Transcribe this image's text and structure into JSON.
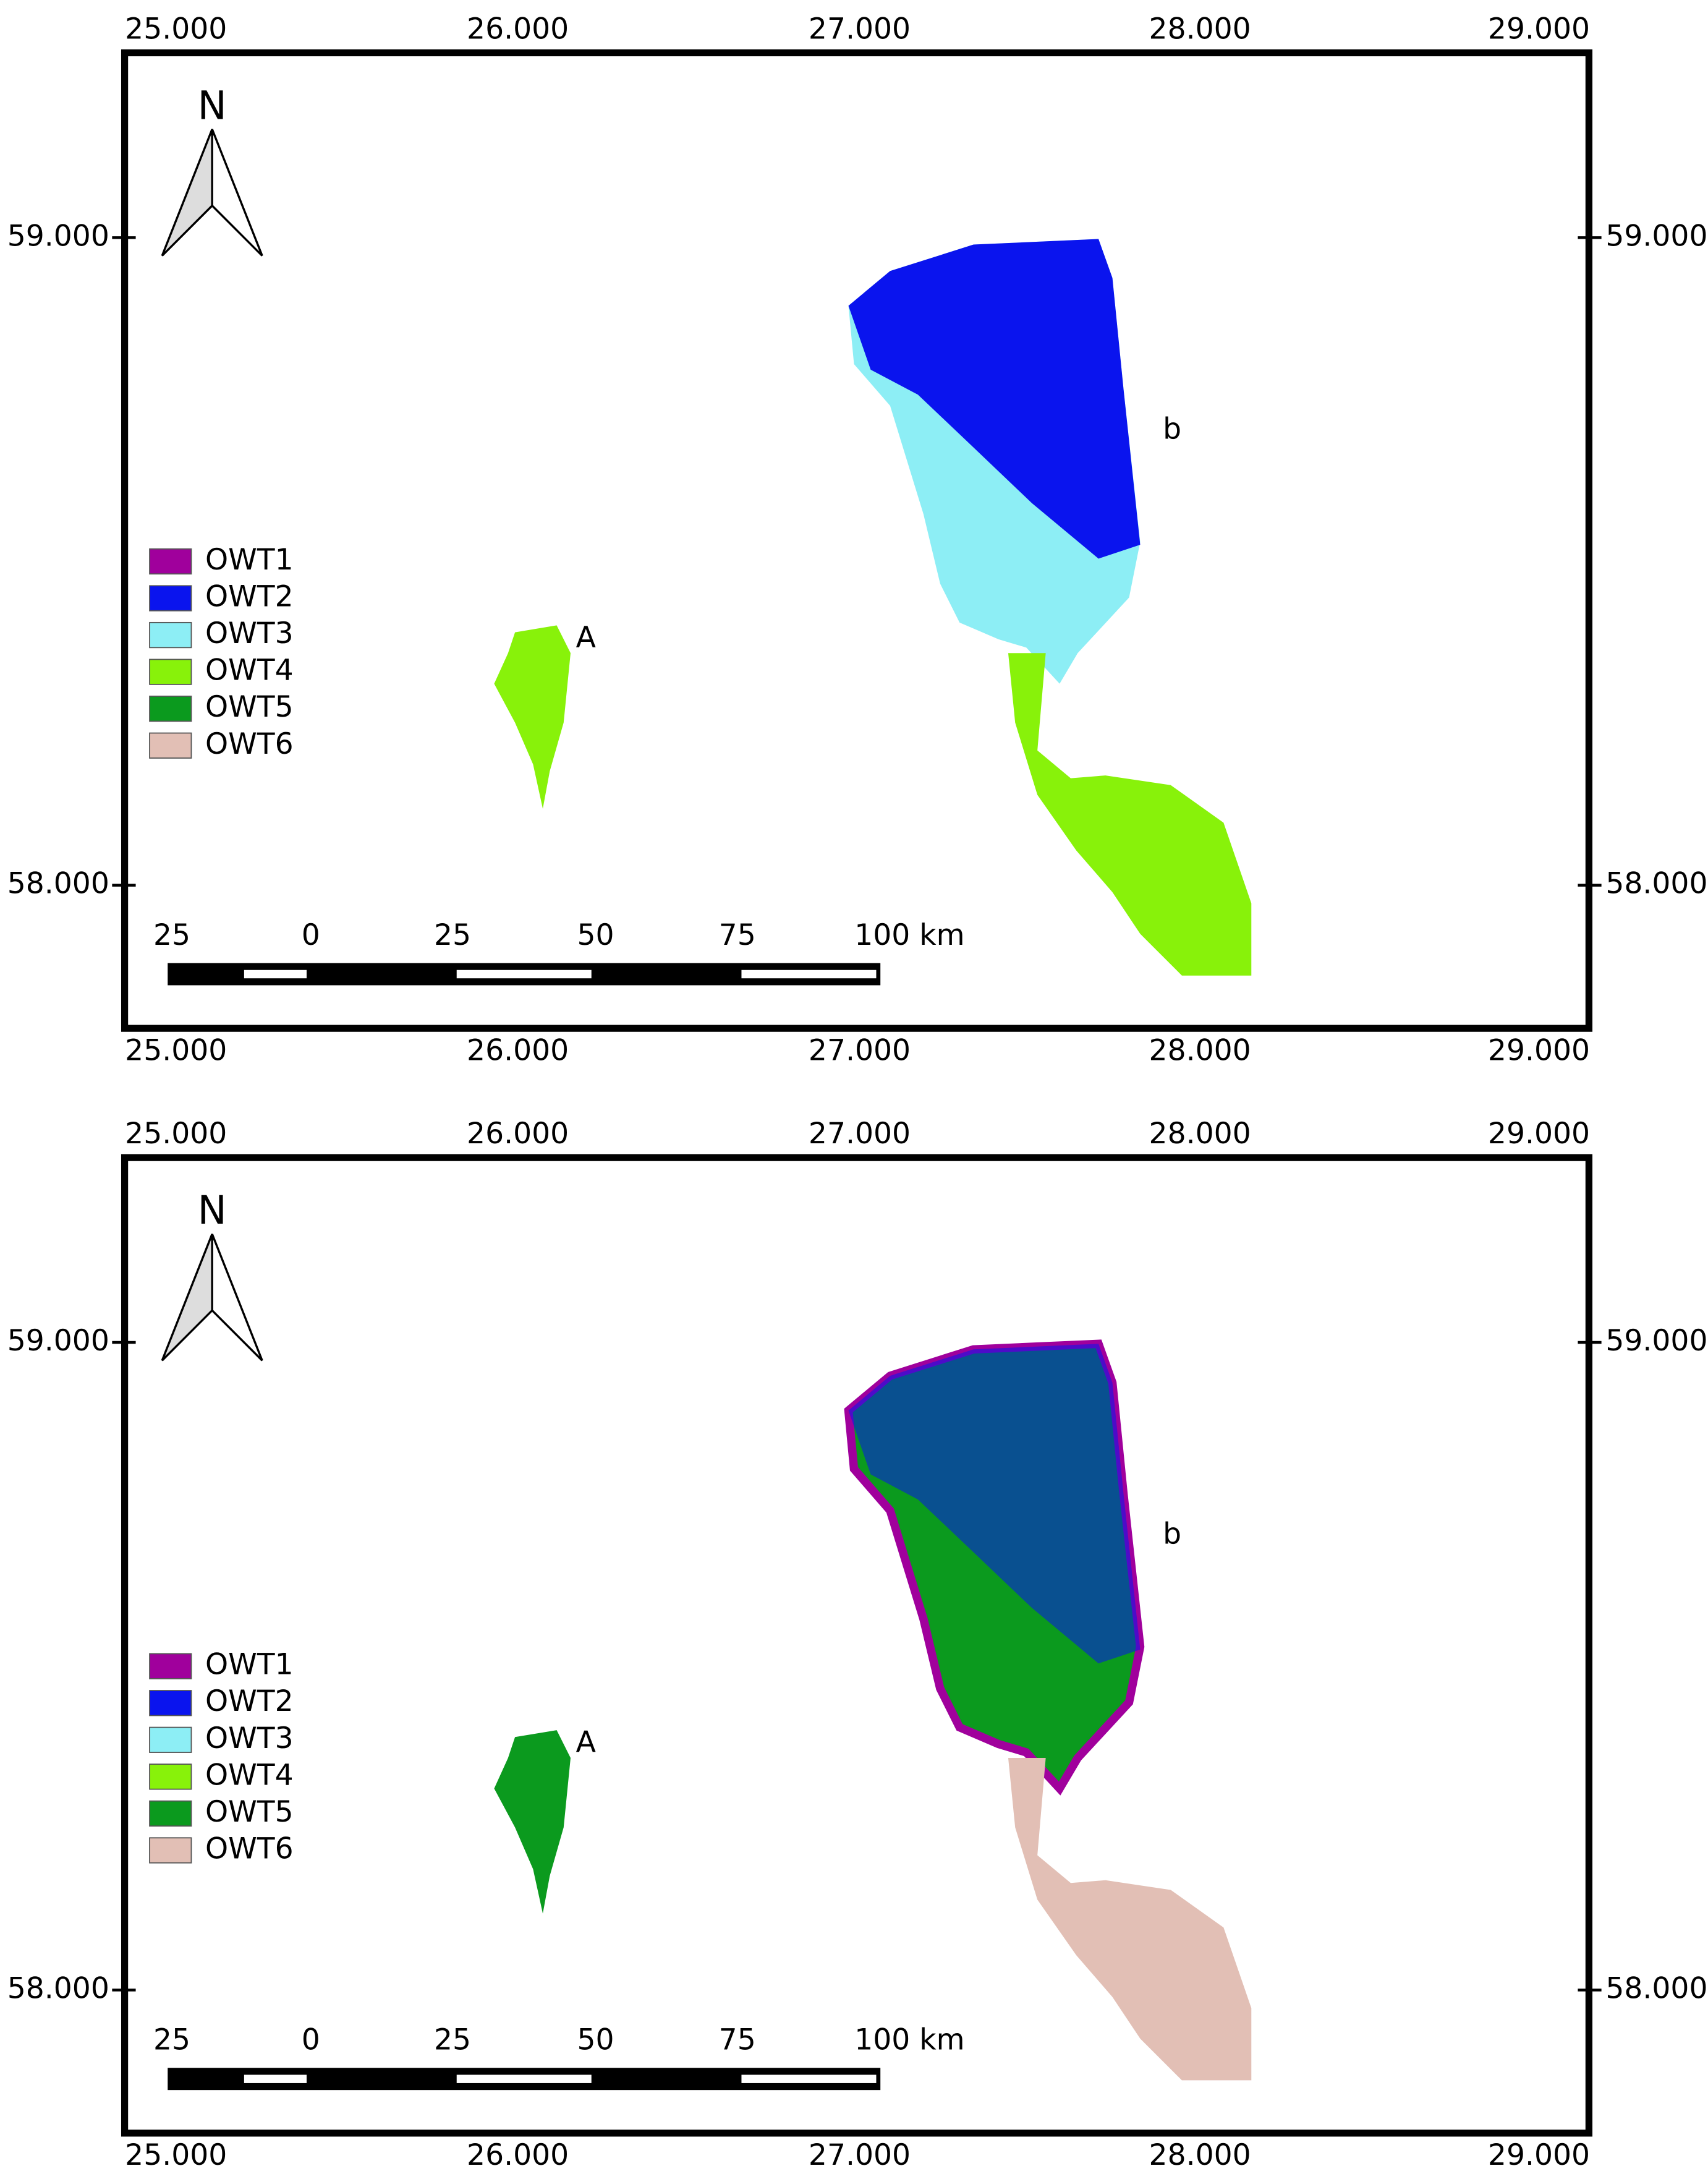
{
  "panels": [
    {
      "xticks": [
        "25.000",
        "26.000",
        "27.000",
        "28.000",
        "29.000"
      ],
      "yticks": [
        "59.000",
        "58.000"
      ],
      "legend": [
        {
          "label": "OWT1",
          "color": "#a0009c"
        },
        {
          "label": "OWT2",
          "color": "#0a14ee"
        },
        {
          "label": "OWT3",
          "color": "#8deef5"
        },
        {
          "label": "OWT4",
          "color": "#88f20a"
        },
        {
          "label": "OWT5",
          "color": "#0b9a1e"
        },
        {
          "label": "OWT6",
          "color": "#e2bfb5"
        }
      ],
      "north": "N",
      "label_a": "A",
      "label_b": "b",
      "scale_bar": [
        "25",
        "0",
        "25",
        "50",
        "75",
        "100 km"
      ]
    },
    {
      "xticks": [
        "25.000",
        "26.000",
        "27.000",
        "28.000",
        "29.000"
      ],
      "yticks": [
        "59.000",
        "58.000"
      ],
      "legend": [
        {
          "label": "OWT1",
          "color": "#a0009c"
        },
        {
          "label": "OWT2",
          "color": "#0a14ee"
        },
        {
          "label": "OWT3",
          "color": "#8deef5"
        },
        {
          "label": "OWT4",
          "color": "#88f20a"
        },
        {
          "label": "OWT5",
          "color": "#0b9a1e"
        },
        {
          "label": "OWT6",
          "color": "#e2bfb5"
        }
      ],
      "north": "N",
      "label_a": "A",
      "label_b": "b",
      "scale_bar": [
        "25",
        "0",
        "25",
        "50",
        "75",
        "100 km"
      ]
    }
  ]
}
